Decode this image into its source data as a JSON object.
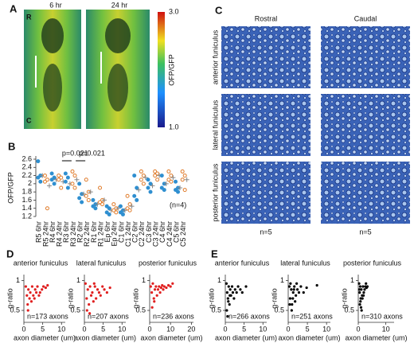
{
  "panel_labels": [
    "A",
    "B",
    "C",
    "D",
    "E"
  ],
  "panel_a": {
    "time_labels": [
      "6 hr",
      "24 hr"
    ],
    "orientation_labels": [
      "R",
      "C"
    ],
    "colorbar": {
      "label": "OFP/GFP",
      "ticks": [
        {
          "value": 3,
          "label": "3.0"
        },
        {
          "value": 1,
          "label": "1.0"
        }
      ]
    }
  },
  "panel_c": {
    "column_labels": [
      "Rostral",
      "Caudal"
    ],
    "row_labels": [
      "anterior funiculus",
      "lateral funiculus",
      "posterior funiculus"
    ],
    "counts": [
      "n=5",
      "n=5"
    ]
  },
  "chart_data": [
    {
      "type": "dot",
      "ylabel": "OFP/GFP",
      "categories": [
        "R5 6hr",
        "R5 24hr",
        "R4 6hr",
        "R4 24hr",
        "R3 6hr",
        "R3 24hr",
        "R2 6hr",
        "R2 24hr",
        "R1 6hr",
        "R1 24hr",
        "Ep 6hr",
        "Ep 24hr",
        "C1 6hr",
        "C1 24hr",
        "C2 6hr",
        "C2 24hr",
        "C3 6hr",
        "C3 24hr",
        "C4 6hr",
        "C4 24hr",
        "C5 6hr",
        "C5 24hr"
      ],
      "colors": [
        "#2f8fd0",
        "#e07b2a",
        "#2f8fd0",
        "#e07b2a",
        "#2f8fd0",
        "#e07b2a",
        "#2f8fd0",
        "#e07b2a",
        "#2f8fd0",
        "#e07b2a",
        "#2f8fd0",
        "#e07b2a",
        "#2f8fd0",
        "#e07b2a",
        "#2f8fd0",
        "#e07b2a",
        "#2f8fd0",
        "#e07b2a",
        "#2f8fd0",
        "#e07b2a",
        "#2f8fd0",
        "#e07b2a"
      ],
      "values": [
        [
          2.55,
          2.2,
          2.15,
          2.05
        ],
        [
          2.2,
          2.1,
          2.05,
          1.4
        ],
        [
          2.25,
          2.15,
          2.1,
          2.0
        ],
        [
          2.2,
          2.15,
          2.1,
          1.9
        ],
        [
          2.25,
          2.15,
          2.05,
          1.9
        ],
        [
          2.3,
          2.2,
          2.0,
          1.9
        ],
        [
          2.0,
          1.75,
          1.65,
          1.55
        ],
        [
          2.1,
          1.8,
          1.7,
          1.6
        ],
        [
          1.6,
          1.5,
          1.45,
          1.4
        ],
        [
          1.9,
          1.6,
          1.55,
          1.5
        ],
        [
          1.45,
          1.4,
          1.3,
          1.25
        ],
        [
          1.5,
          1.4,
          1.35,
          1.3
        ],
        [
          1.45,
          1.35,
          1.3,
          1.25
        ],
        [
          1.7,
          1.5,
          1.4,
          1.35
        ],
        [
          2.2,
          1.9,
          1.7,
          1.6
        ],
        [
          2.3,
          2.2,
          2.1,
          2.0
        ],
        [
          2.1,
          2.0,
          1.9,
          1.8
        ],
        [
          2.3,
          2.25,
          2.2,
          2.1
        ],
        [
          2.2,
          2.0,
          1.9,
          1.85
        ],
        [
          2.3,
          2.2,
          2.1,
          2.05
        ],
        [
          2.05,
          1.9,
          1.85,
          1.8
        ],
        [
          2.3,
          2.2,
          2.1,
          1.85
        ]
      ],
      "means": [
        2.2,
        1.95,
        2.1,
        2.05,
        2.0,
        2.1,
        1.75,
        1.8,
        1.5,
        1.6,
        1.35,
        1.4,
        1.35,
        1.45,
        1.85,
        2.15,
        1.95,
        2.2,
        2.0,
        2.15,
        1.9,
        2.1
      ],
      "mean_color": "#888888",
      "ylim": [
        1.2,
        2.6
      ],
      "yticks": [
        1.2,
        1.4,
        1.6,
        1.8,
        2,
        2.2,
        2.4,
        2.6
      ],
      "annotations": [
        "p=0.021",
        "p=0.021",
        "(n=4)"
      ]
    },
    {
      "type": "scatter",
      "title": "anterior funiculus",
      "xlabel": "axon diameter (um)",
      "ylabel": "g-ratio",
      "annotation": "n=173 axons",
      "color": "#e02020",
      "x": [
        0.5,
        0.8,
        1,
        1.2,
        1.5,
        1.7,
        2,
        2.2,
        2.5,
        2.8,
        3,
        3.3,
        3.6,
        4,
        4.3,
        4.8,
        5.2,
        5.8,
        6.3,
        1.1
      ],
      "y": [
        0.9,
        0.75,
        0.6,
        0.85,
        0.7,
        0.8,
        0.65,
        0.9,
        0.75,
        0.7,
        0.85,
        0.8,
        0.9,
        0.75,
        0.8,
        0.85,
        0.9,
        0.88,
        0.92,
        0.5
      ],
      "xlim": [
        0,
        11
      ],
      "xticks": [
        0,
        5,
        10
      ],
      "ylim": [
        0.3,
        1.1
      ],
      "yticks": [
        0.5,
        1
      ]
    },
    {
      "type": "scatter",
      "title": "lateral funiculus",
      "xlabel": "axon diameter (um)",
      "ylabel": "g-ratio",
      "annotation": "n=207 axons",
      "color": "#e02020",
      "x": [
        0.3,
        0.6,
        0.9,
        1.2,
        1.5,
        1.8,
        2.1,
        2.4,
        2.8,
        3.1,
        3.5,
        3.9,
        4.3,
        4.8,
        5.3,
        6,
        6.8,
        0.7,
        1.4,
        2.6
      ],
      "y": [
        0.95,
        0.7,
        0.85,
        0.6,
        0.9,
        0.75,
        0.8,
        0.65,
        0.9,
        0.7,
        0.85,
        0.8,
        0.75,
        0.9,
        0.85,
        0.8,
        0.88,
        0.5,
        0.45,
        0.95
      ],
      "xlim": [
        0,
        11
      ],
      "xticks": [
        0,
        5,
        10
      ],
      "ylim": [
        0.3,
        1.1
      ],
      "yticks": [
        0.5,
        1
      ]
    },
    {
      "type": "scatter",
      "title": "posterior funiculus",
      "xlabel": "axon diameter (um)",
      "ylabel": "g-ratio",
      "annotation": "n=236 axons",
      "color": "#e02020",
      "x": [
        0.5,
        1,
        1.5,
        2,
        2.5,
        3,
        3.5,
        4,
        4.5,
        5,
        5.5,
        6,
        6.5,
        7,
        8,
        9,
        10,
        11,
        1.2,
        2.2
      ],
      "y": [
        0.9,
        0.8,
        0.95,
        0.7,
        0.85,
        0.9,
        0.75,
        0.85,
        0.9,
        0.8,
        0.88,
        0.92,
        0.85,
        0.9,
        0.88,
        0.92,
        0.9,
        0.95,
        0.55,
        0.65
      ],
      "xlim": [
        0,
        21
      ],
      "xticks": [
        0,
        10,
        20
      ],
      "ylim": [
        0.3,
        1.1
      ],
      "yticks": [
        0.5,
        1
      ]
    },
    {
      "type": "scatter",
      "title": "anterior funiculus",
      "xlabel": "axon diameter (um)",
      "ylabel": "g-ratio",
      "annotation": "n=266 axons",
      "color": "#000000",
      "x": [
        0.3,
        0.5,
        0.7,
        0.9,
        1.1,
        1.3,
        1.5,
        1.8,
        2,
        2.3,
        2.6,
        3,
        3.4,
        4,
        4.5,
        0.4,
        0.8,
        1.2,
        0.6,
        5.5
      ],
      "y": [
        0.95,
        0.8,
        0.7,
        0.9,
        0.6,
        0.85,
        0.75,
        0.9,
        0.8,
        0.7,
        0.85,
        0.8,
        0.9,
        0.85,
        0.8,
        0.5,
        0.65,
        0.75,
        0.4,
        0.9
      ],
      "xlim": [
        0,
        11
      ],
      "xticks": [
        0,
        5,
        10
      ],
      "ylim": [
        0.3,
        1.1
      ],
      "yticks": [
        0.5,
        1
      ]
    },
    {
      "type": "scatter",
      "title": "lateral funiculus",
      "xlabel": "axon diameter (um)",
      "ylabel": "g-ratio",
      "annotation": "n=251 axons",
      "color": "#000000",
      "x": [
        0.3,
        0.5,
        0.8,
        1,
        1.3,
        1.6,
        2,
        2.4,
        2.8,
        3.3,
        0.6,
        0.9,
        1.2,
        1.5,
        4,
        4.8,
        7.5,
        0.4,
        1.8,
        2.2
      ],
      "y": [
        0.9,
        0.7,
        0.85,
        0.6,
        0.8,
        0.9,
        0.75,
        0.85,
        0.8,
        0.9,
        0.95,
        0.5,
        0.7,
        0.85,
        0.8,
        0.88,
        0.92,
        0.6,
        0.65,
        0.95
      ],
      "xlim": [
        0,
        11
      ],
      "xticks": [
        0,
        5,
        10
      ],
      "ylim": [
        0.3,
        1.1
      ],
      "yticks": [
        0.5,
        1
      ]
    },
    {
      "type": "scatter",
      "title": "posterior funiculus",
      "xlabel": "axon diameter (um)",
      "ylabel": "g-ratio",
      "annotation": "n=310 axons",
      "color": "#000000",
      "x": [
        0.3,
        0.5,
        0.7,
        0.9,
        1.1,
        1.4,
        1.7,
        2,
        2.3,
        2.6,
        3,
        0.6,
        0.8,
        1.2,
        1.5,
        0.4,
        2.8,
        3.3,
        1,
        1.9
      ],
      "y": [
        0.95,
        0.8,
        0.9,
        0.7,
        0.85,
        0.75,
        0.9,
        0.8,
        0.85,
        0.9,
        0.88,
        0.6,
        0.65,
        0.5,
        0.7,
        0.85,
        0.95,
        0.9,
        0.55,
        0.75
      ],
      "xlim": [
        0,
        13
      ],
      "xticks": [
        0,
        10
      ],
      "ylim": [
        0.3,
        1.1
      ],
      "yticks": [
        0.5,
        1
      ]
    }
  ]
}
